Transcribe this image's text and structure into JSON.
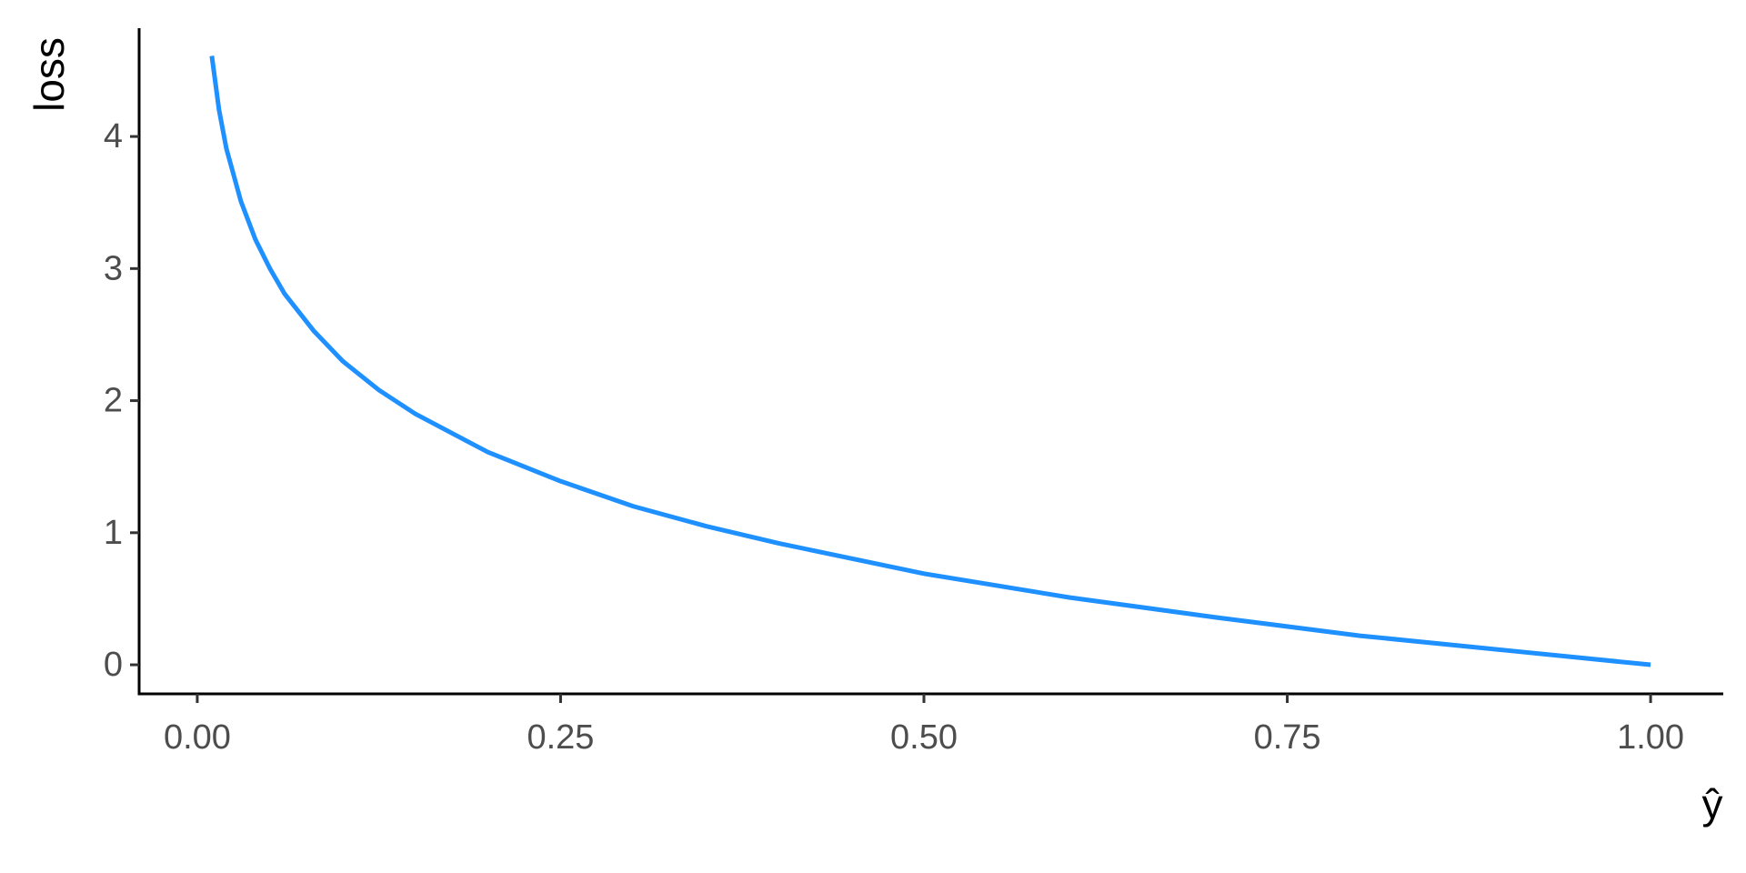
{
  "chart_data": {
    "type": "line",
    "xlabel": "ŷ",
    "ylabel": "loss",
    "x": [
      0.01,
      0.015,
      0.02,
      0.03,
      0.04,
      0.05,
      0.06,
      0.08,
      0.1,
      0.125,
      0.15,
      0.2,
      0.25,
      0.3,
      0.35,
      0.4,
      0.5,
      0.6,
      0.7,
      0.8,
      0.9,
      1.0
    ],
    "series": [
      {
        "color": "#1e90ff",
        "values": [
          4.61,
          4.2,
          3.91,
          3.51,
          3.22,
          3.0,
          2.81,
          2.53,
          2.3,
          2.08,
          1.9,
          1.61,
          1.39,
          1.2,
          1.05,
          0.92,
          0.69,
          0.51,
          0.36,
          0.22,
          0.11,
          0
        ]
      }
    ],
    "xlim": [
      -0.04,
      1.05
    ],
    "xticks": [
      {
        "value": 0,
        "label": "0.00"
      },
      {
        "value": 0.25,
        "label": "0.25"
      },
      {
        "value": 0.5,
        "label": "0.50"
      },
      {
        "value": 0.75,
        "label": "0.75"
      },
      {
        "value": 1,
        "label": "1.00"
      }
    ],
    "ylim": [
      -0.22,
      4.82
    ],
    "yticks": [
      0,
      1,
      2,
      3,
      4
    ],
    "grid": false
  }
}
